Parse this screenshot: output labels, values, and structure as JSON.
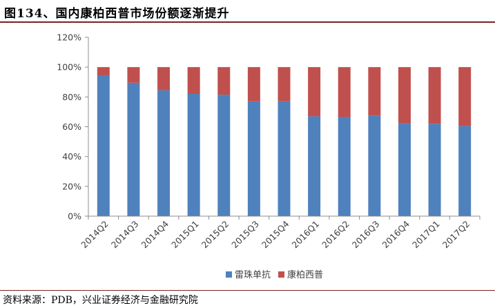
{
  "header": {
    "title": "图134、国内康柏西普市场份额逐渐提升"
  },
  "footer": {
    "source": "资料来源：PDB，兴业证券经济与金融研究院"
  },
  "colors": {
    "series_1": "#4f81bd",
    "series_2": "#c0504d",
    "rule": "#7a2222"
  },
  "chart_data": {
    "type": "bar",
    "stacked": true,
    "title": "",
    "xlabel": "",
    "ylabel": "",
    "ylim": [
      0,
      120
    ],
    "yticks": [
      "0%",
      "20%",
      "40%",
      "60%",
      "80%",
      "100%",
      "120%"
    ],
    "ytick_values": [
      0,
      20,
      40,
      60,
      80,
      100,
      120
    ],
    "grid": false,
    "legend_position": "bottom",
    "categories": [
      "2014Q2",
      "2014Q3",
      "2014Q4",
      "2015Q1",
      "2015Q2",
      "2015Q3",
      "2015Q4",
      "2016Q1",
      "2016Q2",
      "2016Q3",
      "2016Q4",
      "2017Q1",
      "2017Q2"
    ],
    "series": [
      {
        "name": "雷珠单抗",
        "color": "#4f81bd",
        "values": [
          94.5,
          89.5,
          84.5,
          82,
          81.5,
          77,
          77,
          67,
          66.5,
          67.5,
          62.5,
          62,
          60.5
        ]
      },
      {
        "name": "康柏西普",
        "color": "#c0504d",
        "values": [
          5.5,
          10.5,
          15.5,
          18,
          18.5,
          23,
          23,
          33,
          33.5,
          32.5,
          37.5,
          38,
          39.5
        ]
      }
    ]
  }
}
